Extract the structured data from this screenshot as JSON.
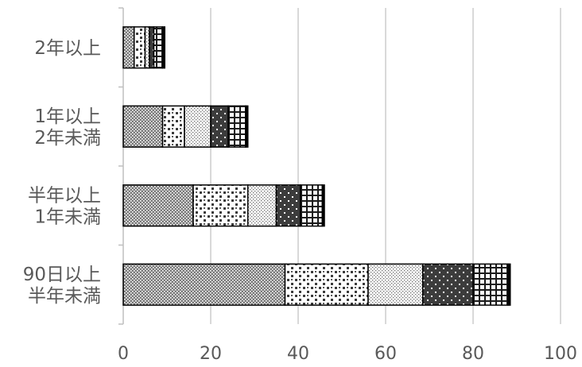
{
  "chart_data": {
    "type": "bar",
    "orientation": "horizontal",
    "stacked": true,
    "categories": [
      [
        "2年以上"
      ],
      [
        "1年以上",
        "2年未満"
      ],
      [
        "半年以上",
        "1年未満"
      ],
      [
        "90日以上",
        "半年未満"
      ]
    ],
    "series": [
      {
        "pattern": "fine-dots-dark",
        "values": [
          2.5,
          9,
          16,
          37
        ]
      },
      {
        "pattern": "coarse-dots",
        "values": [
          2.5,
          5,
          12.5,
          19
        ]
      },
      {
        "pattern": "fine-dots-light",
        "values": [
          1,
          6,
          6.5,
          12.5
        ]
      },
      {
        "pattern": "dark-sparse-dots",
        "values": [
          1,
          4,
          5.5,
          11.5
        ]
      },
      {
        "pattern": "grid",
        "values": [
          2,
          4,
          5,
          8
        ]
      },
      {
        "pattern": "solid-black",
        "values": [
          0.5,
          0.5,
          0.5,
          0.5
        ]
      }
    ],
    "xlim": [
      0,
      100
    ],
    "xticks": [
      0,
      20,
      40,
      60,
      80,
      100
    ],
    "grid": true,
    "legend": "none",
    "title": "",
    "xlabel": "",
    "ylabel": ""
  }
}
